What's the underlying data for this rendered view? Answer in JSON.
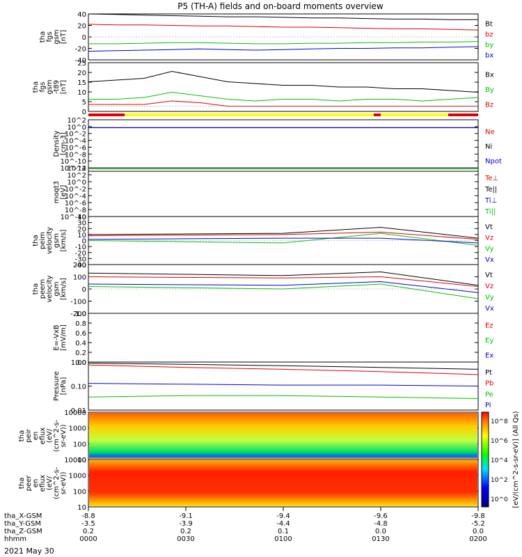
{
  "title": "P5 (TH-A) fields and on-board moments overview",
  "date_label": "2021 May 30",
  "colors": {
    "black": "#000000",
    "red": "#e00000",
    "green": "#00c000",
    "blue": "#0000d0",
    "yellow": "#ffff00"
  },
  "ephemeris": {
    "row_labels": [
      "tha_X-GSM",
      "tha_Y-GSM",
      "tha_Z-GSM",
      "hhmm"
    ],
    "columns": [
      {
        "values": [
          "-8.8",
          "-3.5",
          "0.2",
          "0000"
        ]
      },
      {
        "values": [
          "-9.1",
          "-3.9",
          "0.2",
          "0030"
        ]
      },
      {
        "values": [
          "-9.4",
          "-4.4",
          "0.1",
          "0100"
        ]
      },
      {
        "values": [
          "-9.6",
          "-4.8",
          "0.0",
          "0130"
        ]
      },
      {
        "values": [
          "-9.8",
          "-5.2",
          "0.0",
          "0200"
        ]
      }
    ]
  },
  "chart_data": [
    {
      "type": "line",
      "ylabel": [
        "tha",
        "fgs",
        "gsm",
        "[nT]"
      ],
      "ylim": [
        -40,
        40
      ],
      "ticks": [
        "40",
        "20",
        "0",
        "-20",
        "-40"
      ],
      "series": [
        {
          "name": "Bt",
          "color": "#000000",
          "values": [
            40,
            39,
            38,
            37,
            36,
            35,
            35,
            34,
            33,
            33,
            32,
            31,
            31,
            30,
            30
          ]
        },
        {
          "name": "bz",
          "color": "#e00000",
          "values": [
            22,
            21,
            21,
            20,
            19,
            19,
            18,
            17,
            17,
            16,
            15,
            14,
            14,
            13,
            12
          ]
        },
        {
          "name": "by",
          "color": "#00c000",
          "values": [
            -12,
            -12,
            -11,
            -10,
            -10,
            -11,
            -12,
            -12,
            -11,
            -11,
            -10,
            -10,
            -9,
            -9,
            -8
          ]
        },
        {
          "name": "bx",
          "color": "#0000d0",
          "values": [
            -25,
            -24,
            -23,
            -22,
            -21,
            -22,
            -23,
            -22,
            -21,
            -20,
            -20,
            -19,
            -19,
            -18,
            -17
          ]
        }
      ]
    },
    {
      "type": "line",
      "ylabel": [
        "tha",
        "fgs",
        "gsm",
        "-t89",
        "[nT]"
      ],
      "ylim": [
        -3,
        25
      ],
      "ticks": [
        "25",
        "20",
        "15",
        "10",
        "5",
        "0"
      ],
      "series": [
        {
          "name": "Bx",
          "color": "#000000",
          "values": [
            14,
            15,
            16,
            20,
            17,
            14,
            13,
            12,
            12,
            11,
            11,
            10,
            10,
            9,
            8
          ]
        },
        {
          "name": "By",
          "color": "#00c000",
          "values": [
            4,
            4,
            5,
            8,
            6,
            4,
            3,
            4,
            4,
            3,
            4,
            4,
            3,
            4,
            5
          ]
        },
        {
          "name": "Bz",
          "color": "#e00000",
          "values": [
            1,
            1,
            1,
            3,
            2,
            0,
            0,
            0,
            0,
            0,
            0,
            0,
            0,
            0,
            0
          ]
        }
      ]
    },
    {
      "type": "line",
      "ylabel": [
        "Density",
        "[cm-3]"
      ],
      "log": true,
      "ticks": [
        "10^2",
        "10^0",
        "10^-2",
        "10^-4",
        "10^-6",
        "10^-8",
        "10^-10",
        "10^-12"
      ],
      "series": [
        {
          "name": "Ne",
          "color": "#e00000",
          "values": [
            0.5
          ]
        },
        {
          "name": "Ni",
          "color": "#000000",
          "values": [
            0.5
          ]
        },
        {
          "name": "Npot",
          "color": "#0000d0",
          "values": [
            0.5
          ]
        }
      ]
    },
    {
      "type": "line",
      "ylabel": [
        "moqt3",
        "[eV]"
      ],
      "log": true,
      "ticks": [
        "10^4",
        "10^2",
        "10^0",
        "10^-2",
        "10^-4",
        "10^-6",
        "10^-8",
        "10^-10"
      ],
      "series": [
        {
          "name": "Te⊥",
          "color": "#e00000",
          "values": [
            1000
          ]
        },
        {
          "name": "Te||",
          "color": "#000000",
          "values": [
            1000
          ]
        },
        {
          "name": "Ti⊥",
          "color": "#0000d0",
          "values": [
            5000
          ]
        },
        {
          "name": "Ti||",
          "color": "#00c000",
          "values": [
            5000
          ]
        }
      ]
    },
    {
      "type": "line",
      "ylabel": [
        "tha",
        "peim",
        "velocity",
        "gsm",
        "[km/s]"
      ],
      "ylim": [
        -40,
        40
      ],
      "ticks": [
        "40",
        "30",
        "20",
        "10",
        "0",
        "-10",
        "-20",
        "-30",
        "-40"
      ],
      "series": [
        {
          "name": "Vt",
          "color": "#000000",
          "values": [
            10,
            11,
            12,
            22,
            4
          ]
        },
        {
          "name": "Vz",
          "color": "#e00000",
          "values": [
            8,
            9,
            10,
            14,
            2
          ]
        },
        {
          "name": "Vy",
          "color": "#00c000",
          "values": [
            0,
            -2,
            -4,
            12,
            -8
          ]
        },
        {
          "name": "Vx",
          "color": "#0000d0",
          "values": [
            2,
            3,
            4,
            4,
            -4
          ]
        }
      ]
    },
    {
      "type": "line",
      "ylabel": [
        "tha",
        "peem",
        "velocity",
        "gsm",
        "[km/s]"
      ],
      "ylim": [
        -200,
        200
      ],
      "ticks": [
        "200",
        "100",
        "0",
        "-100",
        "-200"
      ],
      "series": [
        {
          "name": "Vt",
          "color": "#000000",
          "values": [
            130,
            120,
            110,
            140,
            30
          ]
        },
        {
          "name": "Vz",
          "color": "#e00000",
          "values": [
            100,
            95,
            90,
            100,
            20
          ]
        },
        {
          "name": "Vy",
          "color": "#00c000",
          "values": [
            20,
            10,
            0,
            40,
            -80
          ]
        },
        {
          "name": "Vx",
          "color": "#0000d0",
          "values": [
            40,
            35,
            30,
            60,
            -30
          ]
        }
      ]
    },
    {
      "type": "line",
      "ylabel": [
        "E=-VxB",
        "[mV/m]"
      ],
      "ylim": [
        0,
        1
      ],
      "ticks": [
        "1.0",
        "0.8",
        "0.6",
        "0.4",
        "0.2",
        "0.0"
      ],
      "series": [
        {
          "name": "Ez",
          "color": "#e00000",
          "values": []
        },
        {
          "name": "Ey",
          "color": "#00c000",
          "values": []
        },
        {
          "name": "Ex",
          "color": "#0000d0",
          "values": []
        }
      ]
    },
    {
      "type": "line",
      "ylabel": [
        "Pressure",
        "[nPa]"
      ],
      "log": true,
      "ticks": [
        "1.00",
        "0.10",
        "0.01"
      ],
      "series": [
        {
          "name": "Pt",
          "color": "#000000",
          "values": [
            0.9,
            0.8,
            0.7,
            0.6,
            0.5
          ]
        },
        {
          "name": "Pb",
          "color": "#e00000",
          "values": [
            0.75,
            0.6,
            0.5,
            0.4,
            0.3
          ]
        },
        {
          "name": "Pe",
          "color": "#00c000",
          "values": [
            0.035,
            0.04,
            0.04,
            0.035,
            0.03
          ]
        },
        {
          "name": "Pi",
          "color": "#0000d0",
          "values": [
            0.13,
            0.12,
            0.11,
            0.11,
            0.1
          ]
        }
      ]
    },
    {
      "type": "heatmap",
      "ylabel": [
        "tha",
        "peir",
        "en",
        "eflux",
        "(eV/",
        "(cm^2-s-",
        "sr-eV))"
      ],
      "ticks": [
        "10000",
        "1000",
        "100",
        "10"
      ],
      "colorbar_ticks": [
        "10^8",
        "10^6",
        "10^4",
        "10^2",
        "10^0"
      ]
    },
    {
      "type": "heatmap",
      "ylabel": [
        "tha",
        "peer",
        "en",
        "eflux",
        "(eV/",
        "(cm^2-s-",
        "sr-eV))"
      ],
      "ticks": [
        "10000",
        "1000",
        "100",
        "10"
      ],
      "colorbar_ticks": [
        "10^8",
        "10^6",
        "10^4",
        "10^2",
        "10^0"
      ]
    }
  ],
  "colorbar_label": "[eV/(cm^2-s-sr-eV)] (All Qs)"
}
